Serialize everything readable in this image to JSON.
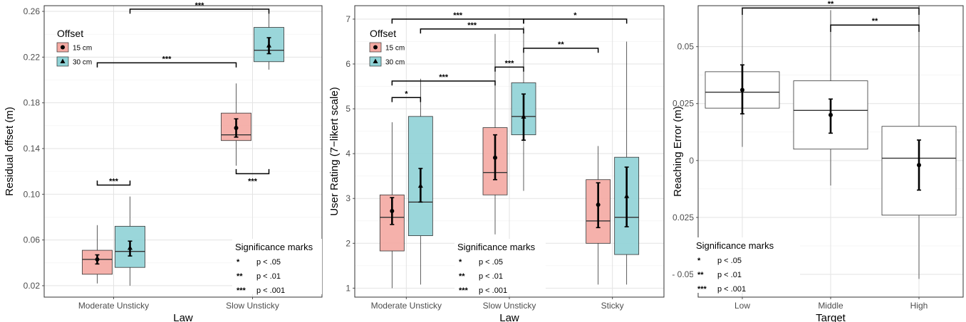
{
  "chart_data": [
    {
      "type": "box",
      "xlabel": "Law",
      "ylabel": "Residual offset (m)",
      "ylim": [
        0.01,
        0.265
      ],
      "yticks": [
        "0.02",
        "0.06",
        "0.10",
        "0.14",
        "0.18",
        "0.22",
        "0.26"
      ],
      "categories": [
        "Moderate Unsticky",
        "Slow Unsticky"
      ],
      "grid": true,
      "legend": {
        "title": "Offset",
        "position": "top-left",
        "items": [
          {
            "label": "15 cm",
            "marker": "circle"
          },
          {
            "label": "30 cm",
            "marker": "triangle"
          }
        ]
      },
      "series": [
        {
          "name": "15 cm",
          "color": "#f4a9a2",
          "boxes": [
            {
              "category": "Moderate Unsticky",
              "min": 0.022,
              "q1": 0.03,
              "median": 0.043,
              "q3": 0.051,
              "max": 0.073,
              "mean": 0.043,
              "ci": [
                0.039,
                0.047
              ]
            },
            {
              "category": "Slow Unsticky",
              "min": 0.125,
              "q1": 0.147,
              "median": 0.152,
              "q3": 0.171,
              "max": 0.197,
              "mean": 0.158,
              "ci": [
                0.15,
                0.166
              ]
            }
          ]
        },
        {
          "name": "30 cm",
          "color": "#8fd2d6",
          "boxes": [
            {
              "category": "Moderate Unsticky",
              "min": 0.02,
              "q1": 0.036,
              "median": 0.05,
              "q3": 0.072,
              "max": 0.098,
              "mean": 0.053,
              "ci": [
                0.046,
                0.059
              ]
            },
            {
              "category": "Slow Unsticky",
              "min": 0.209,
              "q1": 0.216,
              "median": 0.226,
              "q3": 0.246,
              "max": 0.26,
              "mean": 0.23,
              "ci": [
                0.223,
                0.237
              ]
            }
          ]
        }
      ],
      "significance": [
        {
          "from": [
            "Moderate Unsticky",
            "15 cm"
          ],
          "to": [
            "Moderate Unsticky",
            "30 cm"
          ],
          "label": "***"
        },
        {
          "from": [
            "Moderate Unsticky",
            "15 cm"
          ],
          "to": [
            "Slow Unsticky",
            "15 cm"
          ],
          "label": "***"
        },
        {
          "from": [
            "Moderate Unsticky",
            "30 cm"
          ],
          "to": [
            "Slow Unsticky",
            "30 cm"
          ],
          "label": "***"
        },
        {
          "from": [
            "Slow Unsticky",
            "15 cm"
          ],
          "to": [
            "Slow Unsticky",
            "30 cm"
          ],
          "label": "***"
        }
      ],
      "significance_key": {
        "title": "Significance marks",
        "rows": [
          {
            "mark": "*",
            "text": "p < .05"
          },
          {
            "mark": "**",
            "text": "p < .01"
          },
          {
            "mark": "***",
            "text": "p < .001"
          }
        ]
      }
    },
    {
      "type": "box",
      "xlabel": "Law",
      "ylabel": "User Rating (7−likert scale)",
      "ylim": [
        0.8,
        7.3
      ],
      "yticks": [
        "1",
        "2",
        "3",
        "4",
        "5",
        "6",
        "7"
      ],
      "categories": [
        "Moderate Unsticky",
        "Slow Unsticky",
        "Sticky"
      ],
      "grid": true,
      "legend": {
        "title": "Offset",
        "position": "top-left",
        "items": [
          {
            "label": "15 cm",
            "marker": "circle"
          },
          {
            "label": "30 cm",
            "marker": "triangle"
          }
        ]
      },
      "series": [
        {
          "name": "15 cm",
          "color": "#f4a9a2",
          "boxes": [
            {
              "category": "Moderate Unsticky",
              "min": 1.0,
              "q1": 1.83,
              "median": 2.58,
              "q3": 3.08,
              "max": 4.7,
              "mean": 2.72,
              "ci": [
                2.42,
                3.02
              ]
            },
            {
              "category": "Slow Unsticky",
              "min": 2.2,
              "q1": 3.08,
              "median": 3.58,
              "q3": 4.58,
              "max": 6.67,
              "mean": 3.91,
              "ci": [
                3.42,
                4.42
              ]
            },
            {
              "category": "Sticky",
              "min": 1.08,
              "q1": 2.0,
              "median": 2.5,
              "q3": 3.42,
              "max": 4.17,
              "mean": 2.86,
              "ci": [
                2.35,
                3.35
              ]
            }
          ]
        },
        {
          "name": "30 cm",
          "color": "#8fd2d6",
          "boxes": [
            {
              "category": "Moderate Unsticky",
              "min": 1.08,
              "q1": 2.17,
              "median": 2.92,
              "q3": 4.83,
              "max": 5.67,
              "mean": 3.28,
              "ci": [
                2.92,
                3.67
              ]
            },
            {
              "category": "Slow Unsticky",
              "min": 3.17,
              "q1": 4.42,
              "median": 4.83,
              "q3": 5.58,
              "max": 6.83,
              "mean": 4.82,
              "ci": [
                4.3,
                5.33
              ]
            },
            {
              "category": "Sticky",
              "min": 1.08,
              "q1": 1.75,
              "median": 2.58,
              "q3": 3.92,
              "max": 6.5,
              "mean": 3.05,
              "ci": [
                2.37,
                3.7
              ]
            }
          ]
        }
      ],
      "significance": [
        {
          "from": [
            "Moderate Unsticky",
            "15 cm"
          ],
          "to": [
            "Moderate Unsticky",
            "30 cm"
          ],
          "label": "*"
        },
        {
          "from": [
            "Moderate Unsticky",
            "15 cm"
          ],
          "to": [
            "Slow Unsticky",
            "15 cm"
          ],
          "label": "***"
        },
        {
          "from": [
            "Slow Unsticky",
            "15 cm"
          ],
          "to": [
            "Slow Unsticky",
            "30 cm"
          ],
          "label": "***"
        },
        {
          "from": [
            "Slow Unsticky",
            "30 cm"
          ],
          "to": [
            "Sticky",
            "15 cm"
          ],
          "label": "**"
        },
        {
          "from": [
            "Moderate Unsticky",
            "30 cm"
          ],
          "to": [
            "Slow Unsticky",
            "30 cm"
          ],
          "label": "***"
        },
        {
          "from": [
            "Moderate Unsticky",
            "15 cm"
          ],
          "to": [
            "Slow Unsticky",
            "30 cm"
          ],
          "label": "***"
        },
        {
          "from": [
            "Slow Unsticky",
            "30 cm"
          ],
          "to": [
            "Sticky",
            "30 cm"
          ],
          "label": "*"
        }
      ],
      "significance_key": {
        "title": "Significance marks",
        "rows": [
          {
            "mark": "*",
            "text": "p < .05"
          },
          {
            "mark": "**",
            "text": "p < .01"
          },
          {
            "mark": "***",
            "text": "p < .001"
          }
        ]
      }
    },
    {
      "type": "box",
      "xlabel": "Target",
      "ylabel": "Reaching Error (m)",
      "ylim": [
        -0.06,
        0.068
      ],
      "yticks": [
        "- 0.05",
        "- 0.025",
        "0",
        "0.025",
        "0.05"
      ],
      "categories": [
        "Low",
        "Middle",
        "High"
      ],
      "grid": true,
      "series": [
        {
          "name": "",
          "color": "#ffffff",
          "boxes": [
            {
              "category": "Low",
              "min": 0.006,
              "q1": 0.023,
              "median": 0.03,
              "q3": 0.039,
              "max": 0.067,
              "mean": 0.031,
              "ci": [
                0.0205,
                0.042
              ]
            },
            {
              "category": "Middle",
              "min": -0.011,
              "q1": 0.005,
              "median": 0.022,
              "q3": 0.035,
              "max": 0.066,
              "mean": 0.02,
              "ci": [
                0.012,
                0.027
              ]
            },
            {
              "category": "High",
              "min": -0.052,
              "q1": -0.024,
              "median": 0.001,
              "q3": 0.015,
              "max": 0.068,
              "mean": -0.002,
              "ci": [
                -0.013,
                0.009
              ]
            }
          ]
        }
      ],
      "significance": [
        {
          "from": [
            "Low"
          ],
          "to": [
            "High"
          ],
          "label": "**"
        },
        {
          "from": [
            "Middle"
          ],
          "to": [
            "High"
          ],
          "label": "**"
        }
      ],
      "significance_key": {
        "title": "Significance marks",
        "rows": [
          {
            "mark": "*",
            "text": "p < .05"
          },
          {
            "mark": "**",
            "text": "p < .01"
          },
          {
            "mark": "***",
            "text": "p < .001"
          }
        ]
      }
    }
  ]
}
